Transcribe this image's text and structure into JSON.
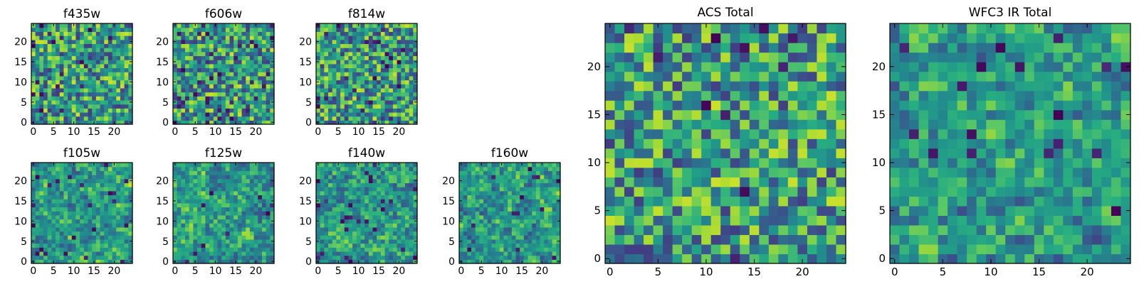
{
  "chart_data": [
    {
      "type": "heatmap",
      "title": "f435w",
      "size": "small",
      "grid_shape": [
        25,
        25
      ],
      "xlim": [
        0,
        25
      ],
      "ylim": [
        0,
        25
      ],
      "xticks": [
        0,
        5,
        10,
        15,
        20
      ],
      "yticks": [
        0,
        5,
        10,
        15,
        20
      ],
      "colormap": "viridis",
      "seed": 11,
      "smooth_passes": 0,
      "dark_spots": 0.04
    },
    {
      "type": "heatmap",
      "title": "f606w",
      "size": "small",
      "grid_shape": [
        25,
        25
      ],
      "xlim": [
        0,
        25
      ],
      "ylim": [
        0,
        25
      ],
      "xticks": [
        0,
        5,
        10,
        15,
        20
      ],
      "yticks": [
        0,
        5,
        10,
        15,
        20
      ],
      "colormap": "viridis",
      "seed": 23,
      "smooth_passes": 0,
      "dark_spots": 0.05
    },
    {
      "type": "heatmap",
      "title": "f814w",
      "size": "small",
      "grid_shape": [
        25,
        25
      ],
      "xlim": [
        0,
        25
      ],
      "ylim": [
        0,
        25
      ],
      "xticks": [
        0,
        5,
        10,
        15,
        20
      ],
      "yticks": [
        0,
        5,
        10,
        15,
        20
      ],
      "colormap": "viridis",
      "seed": 37,
      "smooth_passes": 0,
      "dark_spots": 0.04
    },
    {
      "type": "heatmap",
      "title": "f105w",
      "size": "small",
      "grid_shape": [
        25,
        25
      ],
      "xlim": [
        0,
        25
      ],
      "ylim": [
        0,
        25
      ],
      "xticks": [
        0,
        5,
        10,
        15,
        20
      ],
      "yticks": [
        0,
        5,
        10,
        15,
        20
      ],
      "colormap": "viridis",
      "seed": 41,
      "smooth_passes": 1,
      "dark_spots": 0.03
    },
    {
      "type": "heatmap",
      "title": "f125w",
      "size": "small",
      "grid_shape": [
        25,
        25
      ],
      "xlim": [
        0,
        25
      ],
      "ylim": [
        0,
        25
      ],
      "xticks": [
        0,
        5,
        10,
        15,
        20
      ],
      "yticks": [
        0,
        5,
        10,
        15,
        20
      ],
      "colormap": "viridis",
      "seed": 53,
      "smooth_passes": 1,
      "dark_spots": 0.03
    },
    {
      "type": "heatmap",
      "title": "f140w",
      "size": "small",
      "grid_shape": [
        25,
        25
      ],
      "xlim": [
        0,
        25
      ],
      "ylim": [
        0,
        25
      ],
      "xticks": [
        0,
        5,
        10,
        15,
        20
      ],
      "yticks": [
        0,
        5,
        10,
        15,
        20
      ],
      "colormap": "viridis",
      "seed": 67,
      "smooth_passes": 1,
      "dark_spots": 0.03
    },
    {
      "type": "heatmap",
      "title": "f160w",
      "size": "small",
      "grid_shape": [
        25,
        25
      ],
      "xlim": [
        0,
        25
      ],
      "ylim": [
        0,
        25
      ],
      "xticks": [
        0,
        5,
        10,
        15,
        20
      ],
      "yticks": [
        0,
        5,
        10,
        15,
        20
      ],
      "colormap": "viridis",
      "seed": 79,
      "smooth_passes": 1,
      "dark_spots": 0.03
    },
    {
      "type": "heatmap",
      "title": "ACS Total",
      "size": "large",
      "grid_shape": [
        25,
        25
      ],
      "xlim": [
        0,
        25
      ],
      "ylim": [
        0,
        25
      ],
      "xticks": [
        0,
        5,
        10,
        15,
        20
      ],
      "yticks": [
        0,
        5,
        10,
        15,
        20
      ],
      "colormap": "viridis",
      "seed": 97,
      "smooth_passes": 0,
      "dark_spots": 0.02
    },
    {
      "type": "heatmap",
      "title": "WFC3 IR Total",
      "size": "large",
      "grid_shape": [
        25,
        25
      ],
      "xlim": [
        0,
        25
      ],
      "ylim": [
        0,
        25
      ],
      "xticks": [
        0,
        5,
        10,
        15,
        20
      ],
      "yticks": [
        0,
        5,
        10,
        15,
        20
      ],
      "colormap": "viridis",
      "seed": 113,
      "smooth_passes": 1,
      "dark_spots": 0.02
    }
  ]
}
